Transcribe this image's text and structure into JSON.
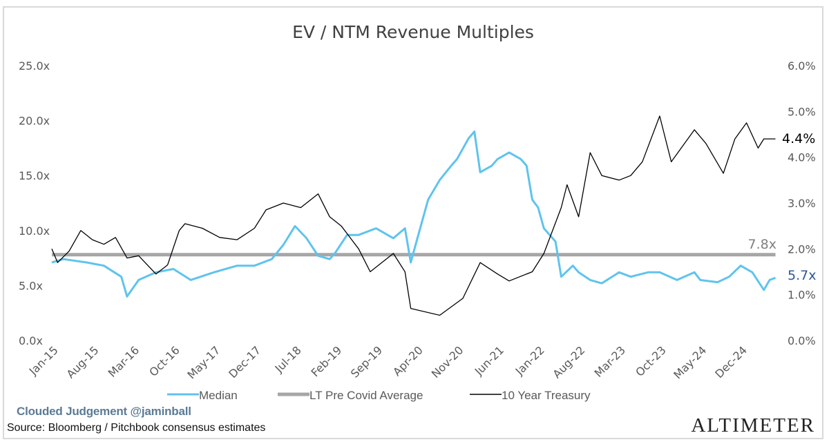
{
  "chart_data": {
    "type": "line",
    "title": "EV / NTM Revenue Multiples",
    "x_tick_labels": [
      "Jan-15",
      "Aug-15",
      "Mar-16",
      "Oct-16",
      "May-17",
      "Dec-17",
      "Jul-18",
      "Feb-19",
      "Sep-19",
      "Apr-20",
      "Nov-20",
      "Jun-21",
      "Jan-22",
      "Aug-22",
      "Mar-23",
      "Oct-23",
      "May-24",
      "Dec-24"
    ],
    "x_range": [
      "2015-01",
      "2025-06"
    ],
    "y_left": {
      "ticks": [
        "0.0x",
        "5.0x",
        "10.0x",
        "15.0x",
        "20.0x",
        "25.0x"
      ],
      "range": [
        0,
        25
      ]
    },
    "y_right": {
      "ticks": [
        "0.0%",
        "1.0%",
        "2.0%",
        "3.0%",
        "4.0%",
        "5.0%",
        "6.0%"
      ],
      "range": [
        0,
        6
      ]
    },
    "legend": "bottom",
    "grid": false,
    "series": [
      {
        "name": "Median",
        "axis": "left",
        "color": "#5fc3ee",
        "end_label": "5.7x",
        "end_label_color": "#2f5597",
        "points": [
          [
            "2015-01",
            7.1
          ],
          [
            "2015-03",
            7.4
          ],
          [
            "2015-07",
            7.1
          ],
          [
            "2015-10",
            6.8
          ],
          [
            "2016-01",
            5.8
          ],
          [
            "2016-02",
            4.0
          ],
          [
            "2016-04",
            5.5
          ],
          [
            "2016-07",
            6.2
          ],
          [
            "2016-10",
            6.5
          ],
          [
            "2017-01",
            5.5
          ],
          [
            "2017-05",
            6.2
          ],
          [
            "2017-09",
            6.8
          ],
          [
            "2017-12",
            6.8
          ],
          [
            "2018-03",
            7.4
          ],
          [
            "2018-05",
            8.7
          ],
          [
            "2018-07",
            10.4
          ],
          [
            "2018-09",
            9.3
          ],
          [
            "2018-11",
            7.7
          ],
          [
            "2019-01",
            7.4
          ],
          [
            "2019-02",
            8.0
          ],
          [
            "2019-04",
            9.6
          ],
          [
            "2019-06",
            9.6
          ],
          [
            "2019-09",
            10.2
          ],
          [
            "2019-12",
            9.3
          ],
          [
            "2020-02",
            10.2
          ],
          [
            "2020-03",
            7.1
          ],
          [
            "2020-04",
            9.0
          ],
          [
            "2020-06",
            12.8
          ],
          [
            "2020-08",
            14.6
          ],
          [
            "2020-10",
            15.9
          ],
          [
            "2020-11",
            16.5
          ],
          [
            "2021-01",
            18.4
          ],
          [
            "2021-02",
            19.0
          ],
          [
            "2021-03",
            15.3
          ],
          [
            "2021-05",
            15.9
          ],
          [
            "2021-06",
            16.5
          ],
          [
            "2021-08",
            17.1
          ],
          [
            "2021-10",
            16.5
          ],
          [
            "2021-11",
            15.9
          ],
          [
            "2021-12",
            12.8
          ],
          [
            "2022-01",
            12.1
          ],
          [
            "2022-02",
            10.2
          ],
          [
            "2022-04",
            9.0
          ],
          [
            "2022-05",
            5.8
          ],
          [
            "2022-07",
            6.8
          ],
          [
            "2022-08",
            6.2
          ],
          [
            "2022-10",
            5.5
          ],
          [
            "2022-12",
            5.2
          ],
          [
            "2023-03",
            6.2
          ],
          [
            "2023-05",
            5.8
          ],
          [
            "2023-08",
            6.2
          ],
          [
            "2023-10",
            6.2
          ],
          [
            "2024-01",
            5.5
          ],
          [
            "2024-04",
            6.2
          ],
          [
            "2024-05",
            5.5
          ],
          [
            "2024-08",
            5.3
          ],
          [
            "2024-10",
            5.8
          ],
          [
            "2024-12",
            6.8
          ],
          [
            "2025-02",
            6.2
          ],
          [
            "2025-04",
            4.6
          ],
          [
            "2025-05",
            5.5
          ],
          [
            "2025-06",
            5.7
          ]
        ]
      },
      {
        "name": "LT Pre Covid Average",
        "axis": "left",
        "color": "#a6a6a6",
        "end_label": "7.8x",
        "end_label_color": "#7f7f7f",
        "points": [
          [
            "2015-01",
            7.8
          ],
          [
            "2025-06",
            7.8
          ]
        ]
      },
      {
        "name": "10 Year Treasury",
        "axis": "right",
        "color": "#000000",
        "end_label": "4.4%",
        "end_label_color": "#000000",
        "points": [
          [
            "2015-01",
            2.0
          ],
          [
            "2015-02",
            1.7
          ],
          [
            "2015-04",
            1.95
          ],
          [
            "2015-06",
            2.4
          ],
          [
            "2015-08",
            2.2
          ],
          [
            "2015-10",
            2.1
          ],
          [
            "2015-12",
            2.25
          ],
          [
            "2016-02",
            1.8
          ],
          [
            "2016-04",
            1.85
          ],
          [
            "2016-07",
            1.45
          ],
          [
            "2016-09",
            1.65
          ],
          [
            "2016-11",
            2.4
          ],
          [
            "2016-12",
            2.55
          ],
          [
            "2017-03",
            2.45
          ],
          [
            "2017-06",
            2.25
          ],
          [
            "2017-09",
            2.2
          ],
          [
            "2017-12",
            2.45
          ],
          [
            "2018-02",
            2.85
          ],
          [
            "2018-05",
            3.0
          ],
          [
            "2018-08",
            2.9
          ],
          [
            "2018-11",
            3.2
          ],
          [
            "2019-01",
            2.7
          ],
          [
            "2019-03",
            2.5
          ],
          [
            "2019-06",
            2.0
          ],
          [
            "2019-08",
            1.5
          ],
          [
            "2019-12",
            1.9
          ],
          [
            "2020-02",
            1.5
          ],
          [
            "2020-03",
            0.7
          ],
          [
            "2020-08",
            0.55
          ],
          [
            "2020-12",
            0.92
          ],
          [
            "2021-03",
            1.7
          ],
          [
            "2021-06",
            1.45
          ],
          [
            "2021-08",
            1.3
          ],
          [
            "2021-12",
            1.5
          ],
          [
            "2022-02",
            1.9
          ],
          [
            "2022-05",
            2.9
          ],
          [
            "2022-06",
            3.4
          ],
          [
            "2022-08",
            2.7
          ],
          [
            "2022-10",
            4.1
          ],
          [
            "2022-12",
            3.6
          ],
          [
            "2023-03",
            3.5
          ],
          [
            "2023-05",
            3.6
          ],
          [
            "2023-07",
            3.9
          ],
          [
            "2023-10",
            4.9
          ],
          [
            "2023-12",
            3.9
          ],
          [
            "2024-04",
            4.6
          ],
          [
            "2024-06",
            4.3
          ],
          [
            "2024-09",
            3.65
          ],
          [
            "2024-11",
            4.4
          ],
          [
            "2025-01",
            4.75
          ],
          [
            "2025-03",
            4.2
          ],
          [
            "2025-04",
            4.4
          ],
          [
            "2025-06",
            4.4
          ]
        ]
      }
    ]
  },
  "footer": {
    "credit": "Clouded Judgement @jaminball",
    "source": "Source: Bloomberg / Pitchbook consensus estimates",
    "logo": "ALTIMETER"
  }
}
